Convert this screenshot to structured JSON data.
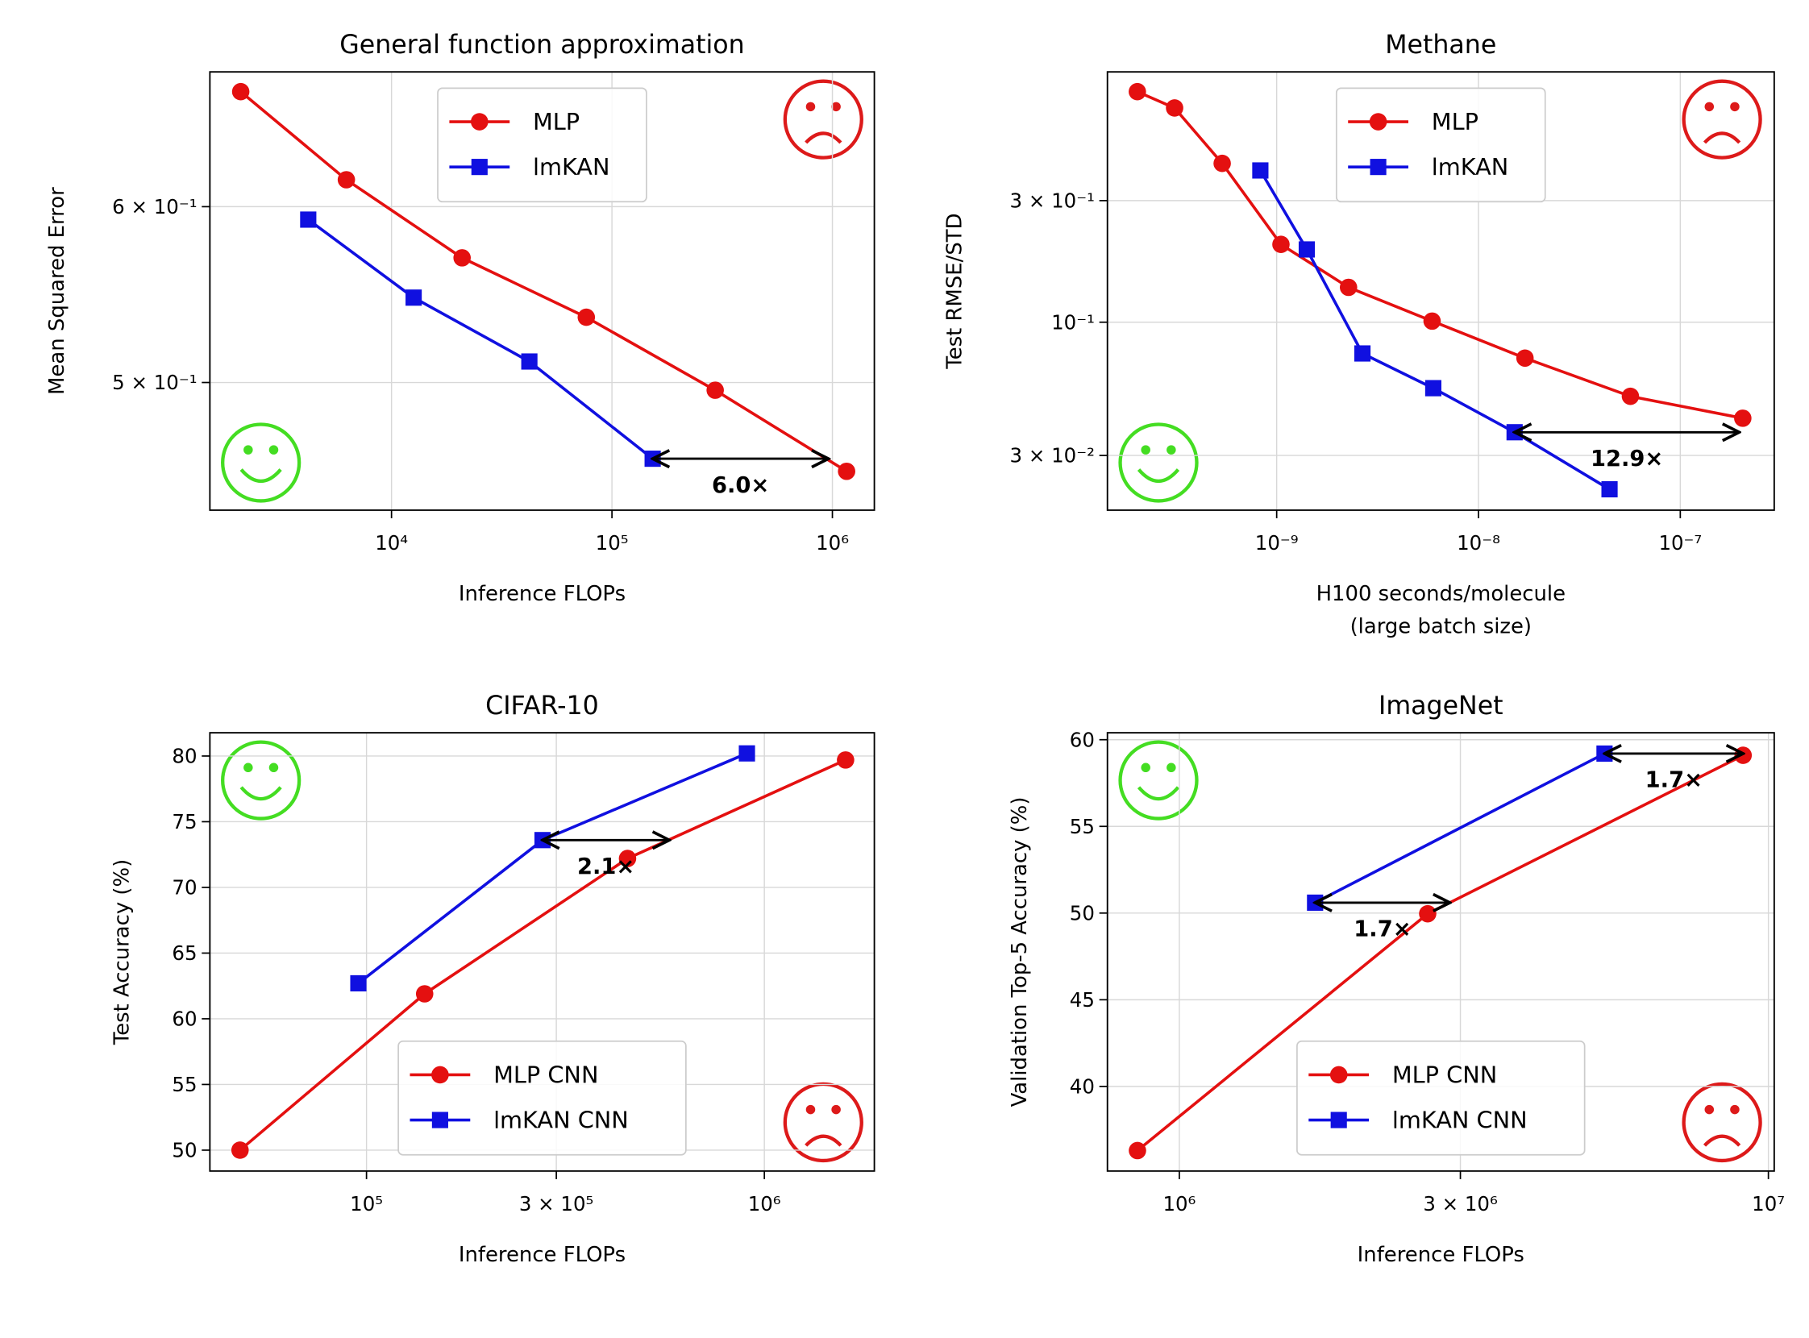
{
  "chart_data": [
    {
      "type": "line",
      "title": "General function approximation",
      "xlabel": "Inference FLOPs",
      "ylabel": "Mean Squared Error",
      "xscale": "log",
      "yscale": "log",
      "xlim": [
        1500,
        1550000
      ],
      "ylim": [
        0.438,
        0.69
      ],
      "xticks": [
        {
          "value": 10000,
          "label": "10⁴"
        },
        {
          "value": 100000,
          "label": "10⁵"
        },
        {
          "value": 1000000,
          "label": "10⁶"
        }
      ],
      "yticks": [
        {
          "value": 0.5,
          "label": "5 × 10⁻¹"
        },
        {
          "value": 0.6,
          "label": "6 × 10⁻¹"
        }
      ],
      "grid": true,
      "legend_loc": "upper center",
      "series": [
        {
          "name": "MLP",
          "color": "#e41010",
          "marker": "o",
          "x": [
            2070,
            6240,
            20900,
            76500,
            294000,
            1160000
          ],
          "values": [
            0.676,
            0.617,
            0.569,
            0.535,
            0.496,
            0.456
          ]
        },
        {
          "name": "lmKAN",
          "color": "#1010e0",
          "marker": "s",
          "x": [
            4190,
            12600,
            42200,
            153000
          ],
          "values": [
            0.592,
            0.546,
            0.511,
            0.462
          ]
        }
      ],
      "annotations": [
        {
          "text": "6.0×",
          "xy": [
            153000,
            0.462
          ],
          "xytext": [
            960000,
            0.462
          ]
        }
      ]
    },
    {
      "type": "line",
      "title": "Methane",
      "xlabel": [
        "H100 seconds/molecule",
        "(large batch size)"
      ],
      "ylabel": "Test RMSE/STD",
      "xscale": "log",
      "yscale": "log",
      "xlim": [
        1.45e-10,
        2.92e-07
      ],
      "ylim": [
        0.0183,
        0.96
      ],
      "xticks": [
        {
          "value": 1e-09,
          "label": "10⁻⁹"
        },
        {
          "value": 1e-08,
          "label": "10⁻⁸"
        },
        {
          "value": 1e-07,
          "label": "10⁻⁷"
        }
      ],
      "yticks": [
        {
          "value": 0.03,
          "label": "3 × 10⁻²"
        },
        {
          "value": 0.1,
          "label": "10⁻¹"
        },
        {
          "value": 0.3,
          "label": "3 × 10⁻¹"
        }
      ],
      "grid": true,
      "legend_loc": "upper center",
      "series": [
        {
          "name": "MLP",
          "color": "#e41010",
          "marker": "o",
          "x": [
            2.04e-10,
            3.12e-10,
            5.37e-10,
            1.05e-09,
            2.27e-09,
            5.89e-09,
            1.7e-08,
            5.66e-08,
            2.04e-07
          ],
          "values": [
            0.803,
            0.693,
            0.42,
            0.202,
            0.137,
            0.101,
            0.0723,
            0.0512,
            0.042
          ]
        },
        {
          "name": "lmKAN",
          "color": "#1010e0",
          "marker": "s",
          "x": [
            8.3e-10,
            1.41e-09,
            2.66e-09,
            5.97e-09,
            1.51e-08,
            4.46e-08
          ],
          "values": [
            0.394,
            0.193,
            0.0754,
            0.0551,
            0.037,
            0.0221
          ]
        }
      ],
      "annotations": [
        {
          "text": "12.9×",
          "xy": [
            1.51e-08,
            0.037
          ],
          "xytext": [
            1.96e-07,
            0.037
          ]
        }
      ]
    },
    {
      "type": "line",
      "title": "CIFAR-10",
      "xlabel": "Inference FLOPs",
      "ylabel": "Test Accuracy (%)",
      "xscale": "log",
      "yscale": "linear",
      "xlim": [
        40400,
        1890000
      ],
      "ylim": [
        48.41,
        81.77
      ],
      "xticks": [
        {
          "value": 100000,
          "label": "10⁵"
        },
        {
          "value": 300000,
          "label": "3 × 10⁵"
        },
        {
          "value": 1000000,
          "label": "10⁶"
        }
      ],
      "yticks": [
        50,
        55,
        60,
        65,
        70,
        75,
        80
      ],
      "grid": true,
      "legend_loc": "lower center",
      "series": [
        {
          "name": "MLP CNN",
          "color": "#e41010",
          "marker": "o",
          "x": [
            48100,
            140000,
            453000,
            1600000
          ],
          "values": [
            50,
            61.9,
            72.2,
            79.7
          ]
        },
        {
          "name": "lmKAN CNN",
          "color": "#1010e0",
          "marker": "s",
          "x": [
            95400,
            277000,
            904000
          ],
          "values": [
            62.7,
            73.6,
            80.2
          ]
        }
      ],
      "annotations": [
        {
          "text": "2.1×",
          "xy": [
            277000,
            73.6
          ],
          "xytext": [
            577000,
            73.6
          ]
        }
      ]
    },
    {
      "type": "line",
      "title": "ImageNet",
      "xlabel": "Inference FLOPs",
      "ylabel": "Validation Top-5 Accuracy (%)",
      "xscale": "log",
      "yscale": "linear",
      "xlim": [
        755000,
        10230000
      ],
      "ylim": [
        35.12,
        60.4
      ],
      "xticks": [
        {
          "value": 1000000,
          "label": "10⁶"
        },
        {
          "value": 3000000,
          "label": "3 × 10⁶"
        },
        {
          "value": 10000000,
          "label": "10⁷"
        }
      ],
      "yticks": [
        40,
        45,
        50,
        55,
        60
      ],
      "grid": true,
      "legend_loc": "lower center",
      "series": [
        {
          "name": "MLP CNN",
          "color": "#e41010",
          "marker": "o",
          "x": [
            849000,
            2640000,
            9060000
          ],
          "values": [
            36.3,
            49.96,
            59.1
          ]
        },
        {
          "name": "lmKAN CNN",
          "color": "#1010e0",
          "marker": "s",
          "x": [
            1700000,
            5270000
          ],
          "values": [
            50.6,
            59.2
          ]
        }
      ],
      "annotations": [
        {
          "text": "1.7×",
          "xy": [
            5270000,
            59.2
          ],
          "xytext": [
            9060000,
            59.2
          ]
        },
        {
          "text": "1.7×",
          "xy": [
            1700000,
            50.6
          ],
          "xytext": [
            2880000,
            50.6
          ]
        }
      ]
    }
  ]
}
